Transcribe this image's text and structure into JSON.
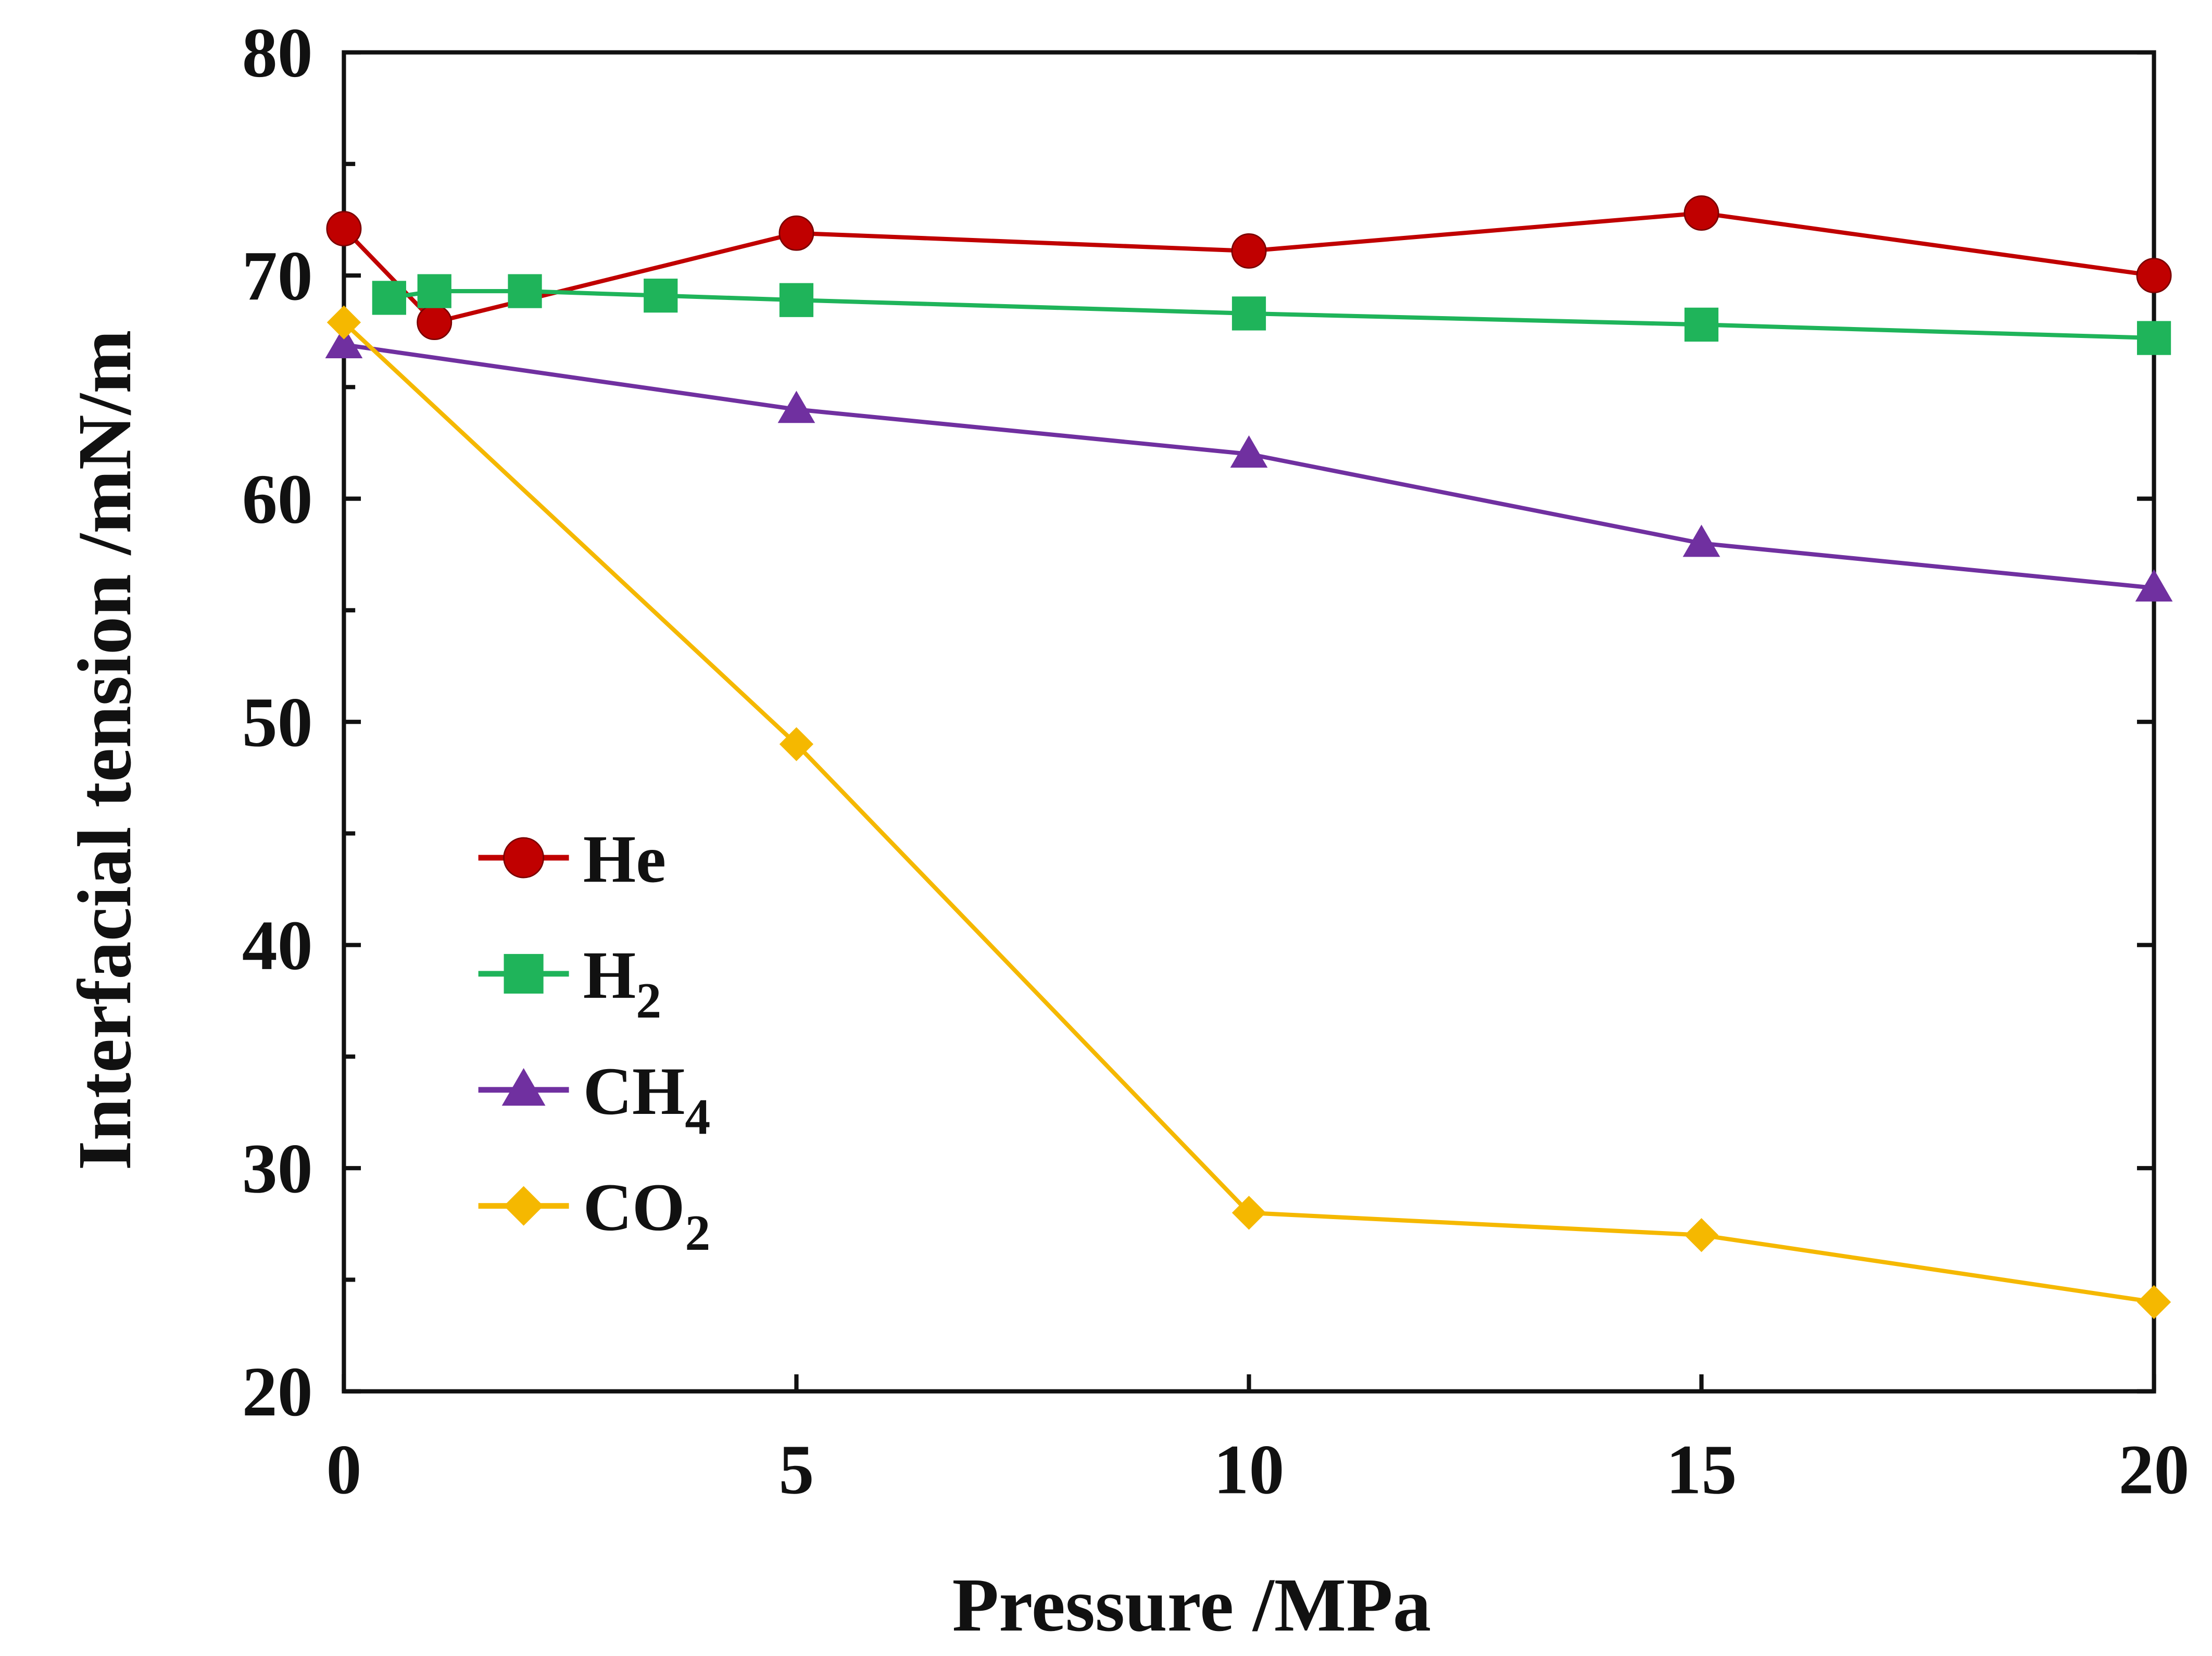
{
  "chart_data": {
    "type": "line",
    "title": "",
    "xlabel": "Pressure /MPa",
    "ylabel": "Interfacial tension /mN/m",
    "xlim": [
      0,
      20
    ],
    "ylim": [
      20,
      80
    ],
    "xticks": [
      0,
      5,
      10,
      15,
      20
    ],
    "yticks": [
      20,
      30,
      40,
      50,
      60,
      70,
      80
    ],
    "grid": false,
    "legend_position": "center-left",
    "series": [
      {
        "name": "He",
        "color": "#c00000",
        "marker": "circle",
        "x": [
          0,
          1,
          5,
          10,
          15,
          20
        ],
        "y": [
          72.1,
          67.9,
          71.9,
          71.1,
          72.8,
          70.0
        ]
      },
      {
        "name": "H2",
        "color": "#1fb45a",
        "marker": "square",
        "x": [
          0.5,
          1,
          2,
          3.5,
          5,
          10,
          15,
          20
        ],
        "y": [
          69.0,
          69.3,
          69.3,
          69.1,
          68.9,
          68.3,
          67.8,
          67.2
        ]
      },
      {
        "name": "CH4",
        "color": "#7030a0",
        "marker": "triangle",
        "x": [
          0,
          5,
          10,
          15,
          20
        ],
        "y": [
          66.9,
          64.0,
          62.0,
          58.0,
          56.0
        ]
      },
      {
        "name": "CO2",
        "color": "#f5b800",
        "marker": "diamond",
        "x": [
          0,
          5,
          10,
          15,
          20
        ],
        "y": [
          67.9,
          49.0,
          28.0,
          27.0,
          24.0
        ]
      }
    ]
  }
}
